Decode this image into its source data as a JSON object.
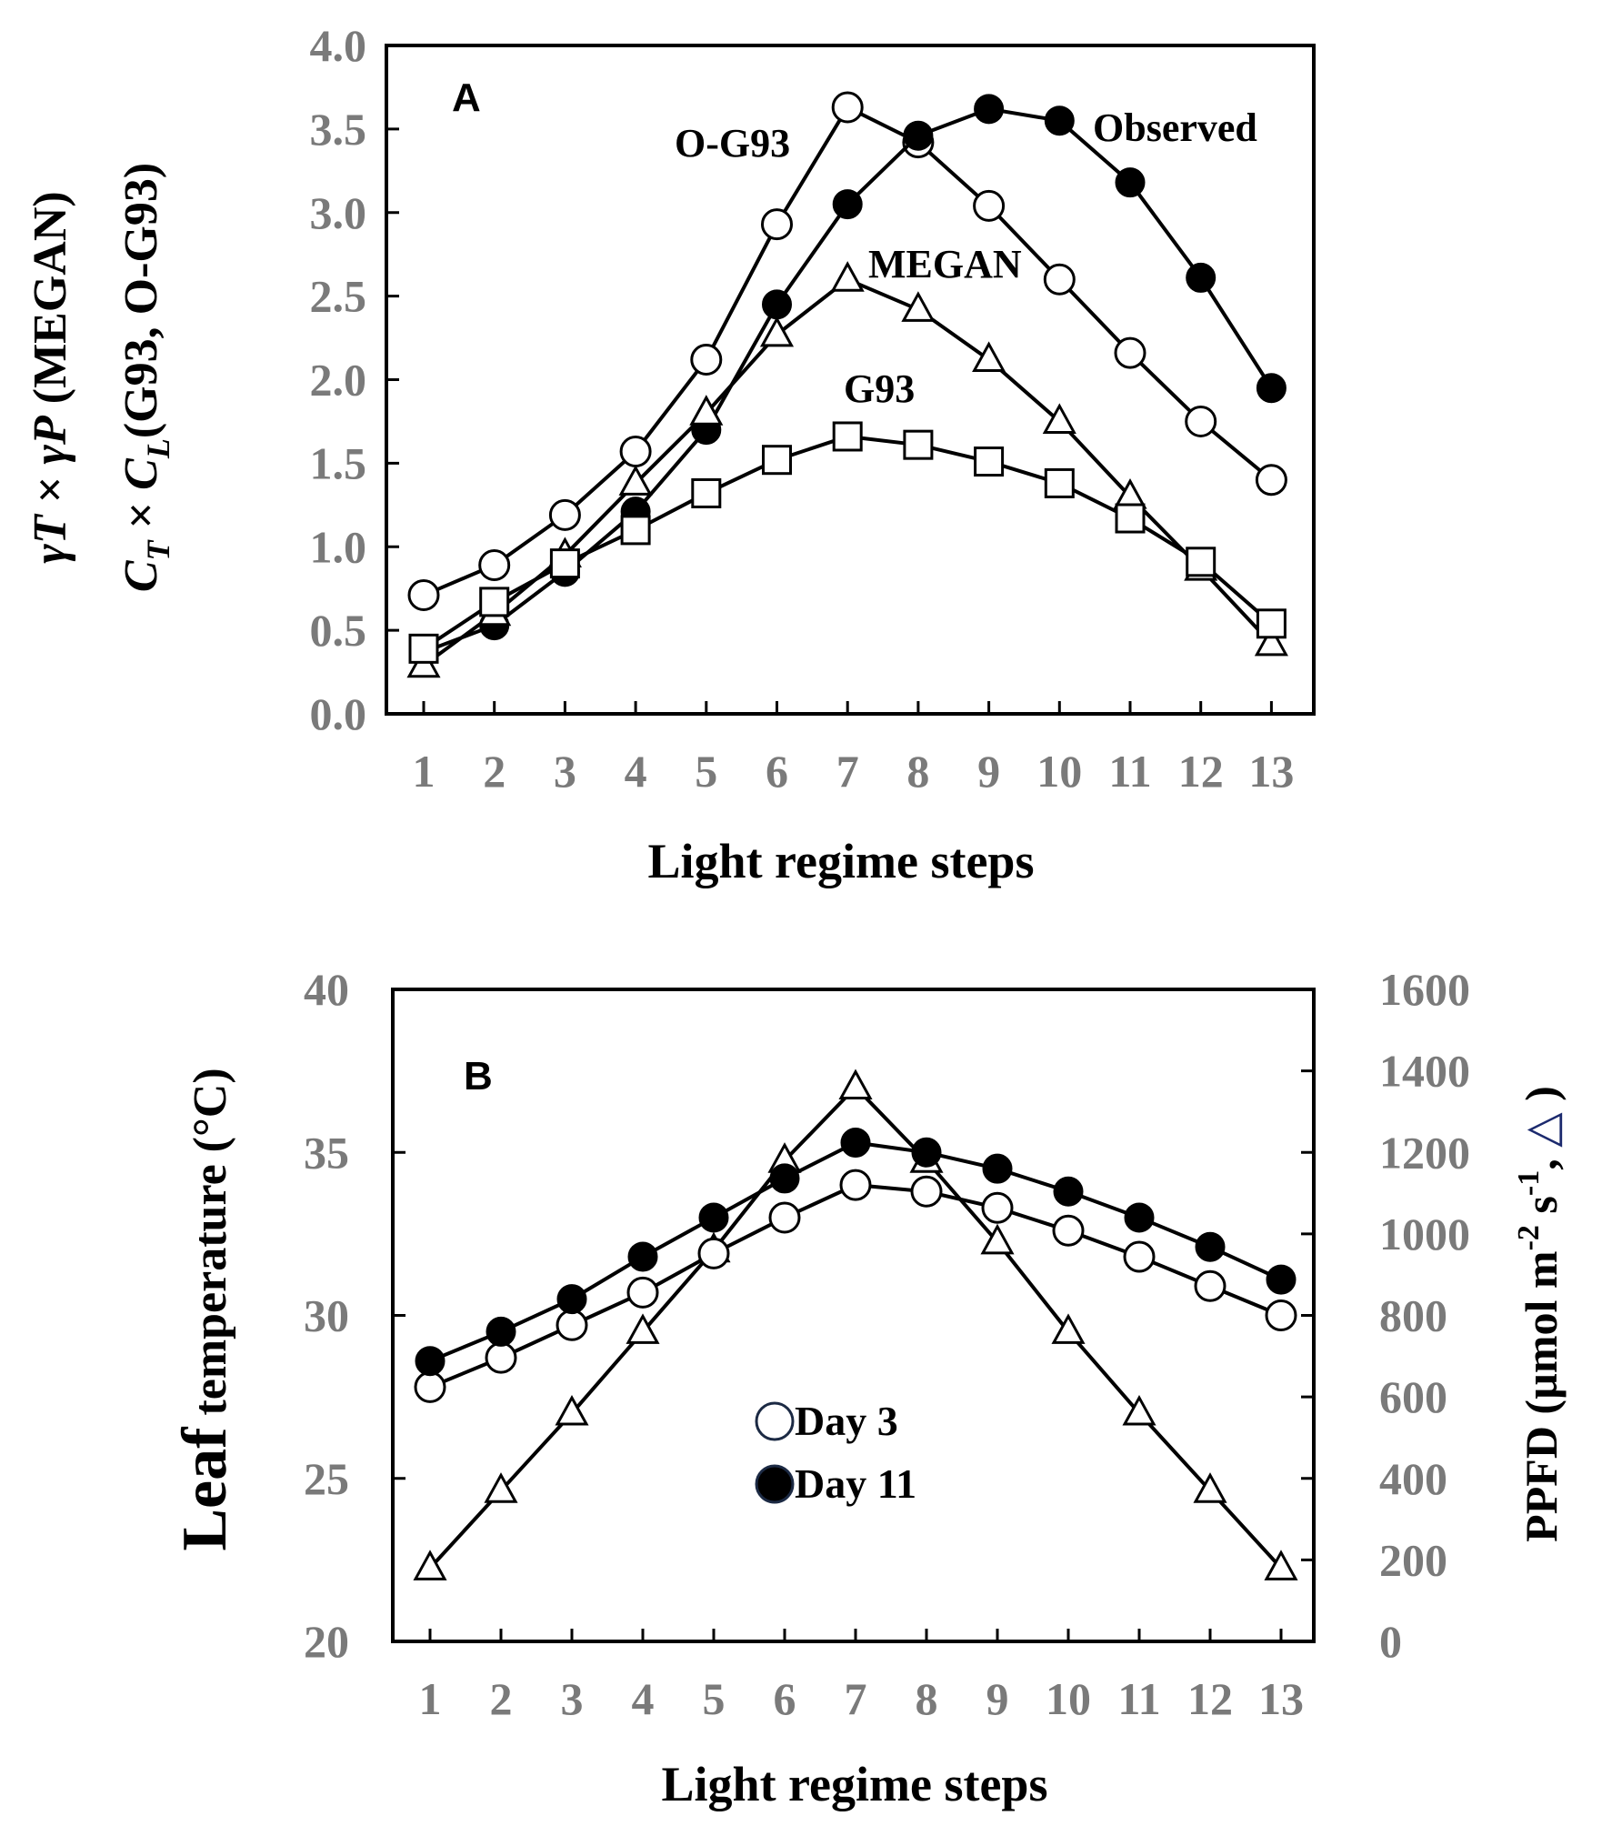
{
  "chart_data": [
    {
      "type": "line",
      "panel": "A",
      "xlabel": "Light regime steps",
      "ylabel_lines": [
        [
          "γ",
          "T",
          " × ",
          "γ",
          "P",
          " (MEGAN)"
        ],
        [
          "C",
          "T",
          " × ",
          "C",
          "L",
          "(G93, O-G93)"
        ]
      ],
      "ylim": [
        0,
        4.0
      ],
      "yticks": [
        "0.0",
        "0.5",
        "1.0",
        "1.5",
        "2.0",
        "2.5",
        "3.0",
        "3.5",
        "4.0"
      ],
      "categories": [
        "1",
        "2",
        "3",
        "4",
        "5",
        "6",
        "7",
        "8",
        "9",
        "10",
        "11",
        "12",
        "13"
      ],
      "series": [
        {
          "name": "Observed",
          "marker": "filled-circle",
          "values": [
            0.37,
            0.53,
            0.85,
            1.21,
            1.7,
            2.45,
            3.05,
            3.46,
            3.62,
            3.55,
            3.18,
            2.61,
            1.95
          ]
        },
        {
          "name": "O-G93",
          "marker": "open-circle",
          "values": [
            0.71,
            0.89,
            1.19,
            1.57,
            2.12,
            2.93,
            3.63,
            3.42,
            3.04,
            2.6,
            2.16,
            1.75,
            1.4
          ]
        },
        {
          "name": "MEGAN",
          "marker": "open-triangle",
          "values": [
            0.29,
            0.6,
            0.95,
            1.38,
            1.8,
            2.27,
            2.6,
            2.42,
            2.12,
            1.75,
            1.3,
            0.87,
            0.42
          ]
        },
        {
          "name": "G93",
          "marker": "open-square",
          "values": [
            0.39,
            0.67,
            0.9,
            1.1,
            1.32,
            1.52,
            1.66,
            1.61,
            1.51,
            1.38,
            1.17,
            0.91,
            0.54
          ]
        }
      ]
    },
    {
      "type": "line",
      "panel": "B",
      "xlabel": "Light regime steps",
      "ylabel_left": "Leaf temperature (°C)",
      "ylabel_left_big": "Leaf",
      "ylabel_left_rest": " temperature (°C)",
      "ylabel_right_parts": [
        "PPFD (µmol m",
        "-2",
        " s",
        "-1",
        ", ",
        "△",
        " )"
      ],
      "ylim_left": [
        20,
        40
      ],
      "ylim_right": [
        0,
        1600
      ],
      "yticks_left": [
        "20",
        "25",
        "30",
        "35",
        "40"
      ],
      "yticks_right": [
        "0",
        "200",
        "400",
        "600",
        "800",
        "1000",
        "1200",
        "1400",
        "1600"
      ],
      "categories": [
        "1",
        "2",
        "3",
        "4",
        "5",
        "6",
        "7",
        "8",
        "9",
        "10",
        "11",
        "12",
        "13"
      ],
      "series": [
        {
          "name": "Day 3",
          "marker": "open-circle",
          "axis": "left",
          "values": [
            27.8,
            28.7,
            29.7,
            30.7,
            31.9,
            33.0,
            34.0,
            33.8,
            33.3,
            32.6,
            31.8,
            30.9,
            30.0
          ]
        },
        {
          "name": "Day 11",
          "marker": "filled-circle",
          "axis": "left",
          "values": [
            28.6,
            29.5,
            30.5,
            31.8,
            33.0,
            34.2,
            35.3,
            35.0,
            34.5,
            33.8,
            33.0,
            32.1,
            31.1
          ]
        },
        {
          "name": "PPFD",
          "marker": "open-triangle",
          "axis": "right",
          "values": [
            180,
            370,
            560,
            760,
            960,
            1180,
            1360,
            1180,
            980,
            760,
            560,
            370,
            180
          ]
        }
      ],
      "legend": [
        "Day 3",
        "Day 11"
      ]
    }
  ]
}
